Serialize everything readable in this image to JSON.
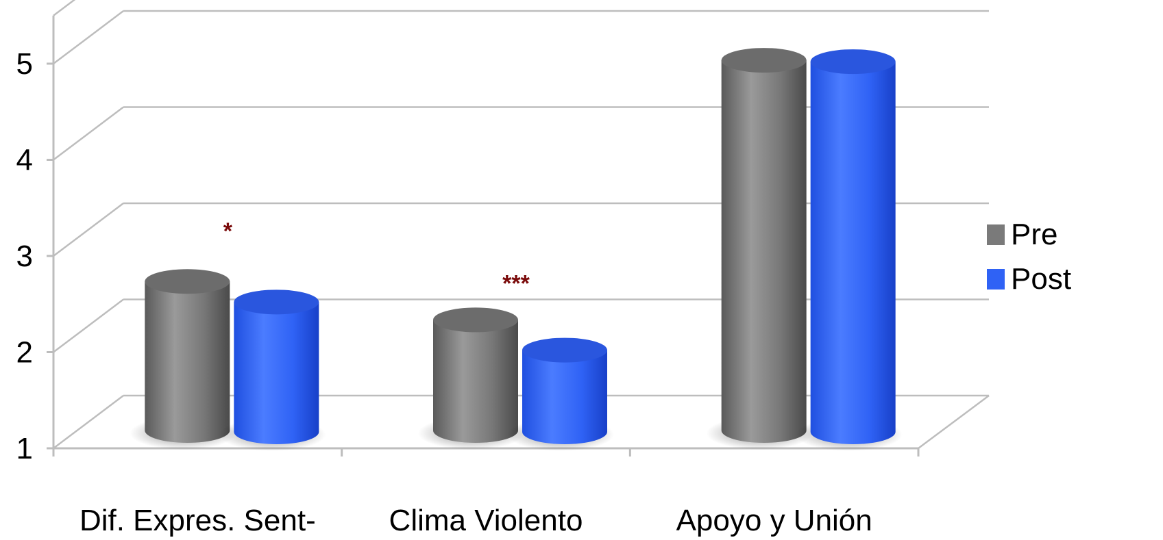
{
  "chart_data": {
    "type": "bar",
    "style": "3d-cylinder",
    "categories": [
      "Dif. Expres. Sent-",
      "Clima Violento",
      "Apoyo y Unión"
    ],
    "series": [
      {
        "name": "Pre",
        "color": "#7a7a7a",
        "values": [
          2.55,
          2.15,
          4.85
        ]
      },
      {
        "name": "Post",
        "color": "#2f62f5",
        "values": [
          2.35,
          1.85,
          4.85
        ]
      }
    ],
    "annotations": [
      "*",
      "***",
      ""
    ],
    "yticks": [
      "1",
      "2",
      "3",
      "4",
      "5"
    ],
    "ylim": [
      1,
      5.5
    ],
    "grid": true,
    "legend": "right"
  }
}
